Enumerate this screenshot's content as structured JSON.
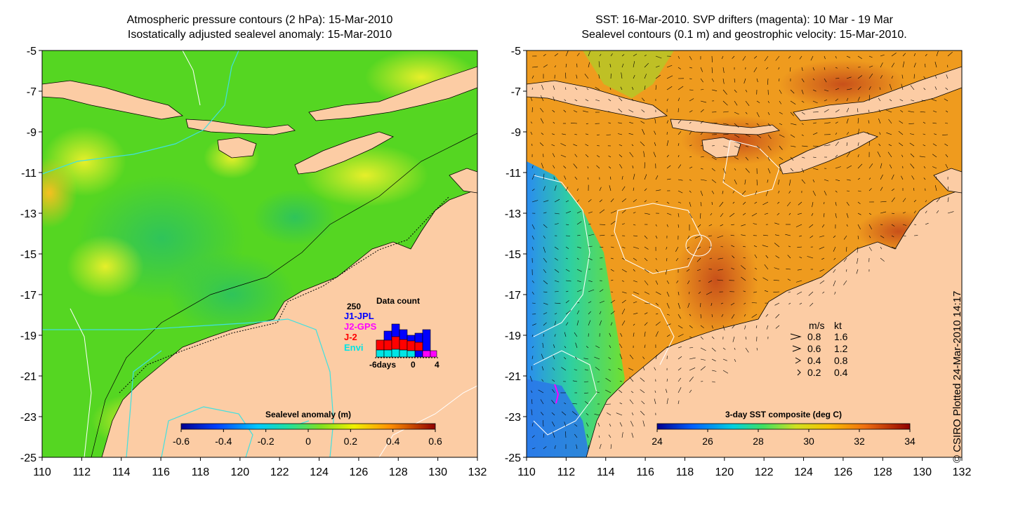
{
  "left_panel": {
    "title_line1": "Atmospheric pressure contours (2 hPa): 15-Mar-2010",
    "title_line2": "Isostatically adjusted sealevel anomaly: 15-Mar-2010",
    "y_ticks": [
      "-5",
      "-7",
      "-9",
      "-11",
      "-13",
      "-15",
      "-17",
      "-19",
      "-21",
      "-23",
      "-25"
    ],
    "x_ticks": [
      "110",
      "112",
      "114",
      "116",
      "118",
      "120",
      "122",
      "124",
      "126",
      "128",
      "130",
      "132"
    ],
    "colorbar": {
      "label": "Sealevel anomaly (m)",
      "ticks": [
        "-0.6",
        "-0.4",
        "-0.2",
        "0",
        "0.2",
        "0.4",
        "0.6"
      ]
    },
    "data_count": {
      "title": "Data count",
      "max_label": "250",
      "legend": [
        {
          "name": "J1-JPL",
          "color": "#0000ff"
        },
        {
          "name": "J2-GPS",
          "color": "#ff00ff"
        },
        {
          "name": "J-2",
          "color": "#ff0000"
        },
        {
          "name": "Envi",
          "color": "#00e5e5"
        }
      ],
      "axis_labels": [
        "-6days",
        "0",
        "4"
      ]
    }
  },
  "right_panel": {
    "title_line1": "SST: 16-Mar-2010. SVP drifters (magenta): 10 Mar - 19 Mar",
    "title_line2": "Sealevel contours (0.1 m) and geostrophic velocity: 15-Mar-2010.",
    "y_ticks": [
      "-5",
      "-7",
      "-9",
      "-11",
      "-13",
      "-15",
      "-17",
      "-19",
      "-21",
      "-23",
      "-25"
    ],
    "x_ticks": [
      "110",
      "112",
      "114",
      "116",
      "118",
      "120",
      "122",
      "124",
      "126",
      "128",
      "130",
      "132"
    ],
    "colorbar": {
      "label": "3-day SST composite (deg C)",
      "ticks": [
        "24",
        "26",
        "28",
        "30",
        "32",
        "34"
      ]
    },
    "velocity_key": {
      "header_ms": "m/s",
      "header_kt": "kt",
      "rows": [
        {
          "ms": "0.8",
          "kt": "1.6"
        },
        {
          "ms": "0.6",
          "kt": "1.2"
        },
        {
          "ms": "0.4",
          "kt": "0.8"
        },
        {
          "ms": "0.2",
          "kt": "0.4"
        }
      ]
    }
  },
  "copyright": "© CSIRO Plotted 24-Mar-2010 14:17",
  "colors": {
    "land": "#fccca4",
    "sea_green": "#55d622",
    "sst_orange": "#ef9b1e",
    "contour_cyan": "#40e0e0"
  }
}
